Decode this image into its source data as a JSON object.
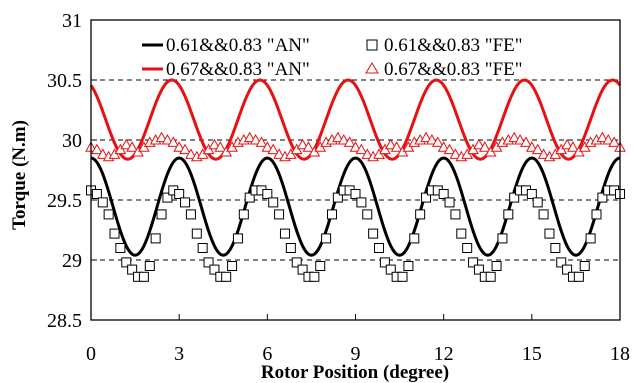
{
  "chart_data": {
    "type": "line",
    "title": "",
    "xlabel": "Rotor Position (degree)",
    "ylabel": "Torque (N.m)",
    "xlim": [
      0,
      18
    ],
    "ylim": [
      28.5,
      31
    ],
    "xticks": [
      "0",
      "3",
      "6",
      "9",
      "12",
      "15",
      "18"
    ],
    "yticks": [
      "28.5",
      "29",
      "29.5",
      "30",
      "30.5",
      "31"
    ],
    "grid": "horizontal dashed at 29, 29.5, 30, 30.5",
    "legend_position": "top",
    "series": [
      {
        "name": "0.61&&0.83 \"AN\"",
        "style": "line",
        "color": "#000000",
        "mean": 29.445,
        "amplitude": 0.405,
        "period_deg": 3,
        "peak_at_deg": 0,
        "values_every_0.5deg": [
          29.85,
          29.75,
          29.45,
          29.04,
          29.14,
          29.45,
          29.85,
          29.75,
          29.45,
          29.04,
          29.14,
          29.45,
          29.85,
          29.75,
          29.45,
          29.04,
          29.14,
          29.45,
          29.85,
          29.75,
          29.45,
          29.04,
          29.14,
          29.45,
          29.85,
          29.75,
          29.45,
          29.04,
          29.14,
          29.45,
          29.85,
          29.75,
          29.45,
          29.04,
          29.14,
          29.45,
          29.85
        ]
      },
      {
        "name": "0.61&&0.83 \"FE\"",
        "style": "markers",
        "marker": "square",
        "color": "#000000",
        "x": [
          0,
          0.2,
          0.4,
          0.6,
          0.8,
          1.0,
          1.2,
          1.4,
          1.6,
          1.8,
          2.0,
          2.2,
          2.4,
          2.6,
          2.8,
          3.0,
          3.2,
          3.4,
          3.6,
          3.8,
          4.0,
          4.2,
          4.4,
          4.6,
          4.8,
          5.0,
          5.2,
          5.4,
          5.6,
          5.8,
          6.0,
          6.2,
          6.4,
          6.6,
          6.8,
          7.0,
          7.2,
          7.4,
          7.6,
          7.8,
          8.0,
          8.2,
          8.4,
          8.6,
          8.8,
          9.0,
          9.2,
          9.4,
          9.6,
          9.8,
          10.0,
          10.2,
          10.4,
          10.6,
          10.8,
          11.0,
          11.2,
          11.4,
          11.6,
          11.8,
          12.0,
          12.2,
          12.4,
          12.6,
          12.8,
          13.0,
          13.2,
          13.4,
          13.6,
          13.8,
          14.0,
          14.2,
          14.4,
          14.6,
          14.8,
          15.0,
          15.2,
          15.4,
          15.6,
          15.8,
          16.0,
          16.2,
          16.4,
          16.6,
          16.8,
          17.0,
          17.2,
          17.4,
          17.6,
          17.8,
          18.0
        ],
        "y": [
          29.58,
          29.55,
          29.48,
          29.38,
          29.22,
          29.1,
          28.98,
          28.92,
          28.86,
          28.86,
          28.95,
          29.18,
          29.38,
          29.52,
          29.58,
          29.55,
          29.48,
          29.38,
          29.22,
          29.1,
          28.98,
          28.92,
          28.86,
          28.86,
          28.95,
          29.18,
          29.38,
          29.52,
          29.58,
          29.58,
          29.55,
          29.48,
          29.38,
          29.22,
          29.1,
          28.98,
          28.92,
          28.86,
          28.86,
          28.95,
          29.18,
          29.38,
          29.52,
          29.58,
          29.58,
          29.55,
          29.48,
          29.38,
          29.22,
          29.1,
          28.98,
          28.92,
          28.86,
          28.86,
          28.95,
          29.18,
          29.38,
          29.52,
          29.58,
          29.58,
          29.55,
          29.48,
          29.38,
          29.22,
          29.1,
          28.98,
          28.92,
          28.86,
          28.86,
          28.95,
          29.18,
          29.38,
          29.52,
          29.58,
          29.58,
          29.55,
          29.48,
          29.38,
          29.22,
          29.1,
          28.98,
          28.92,
          28.86,
          28.86,
          28.95,
          29.18,
          29.38,
          29.52,
          29.58,
          29.58,
          29.55
        ]
      },
      {
        "name": "0.67&&0.83 \"AN\"",
        "style": "line",
        "color": "#e81010",
        "mean": 30.17,
        "amplitude": 0.33,
        "period_deg": 3,
        "peak_at_deg": 2.75,
        "values_every_0.5deg": [
          30.42,
          30.07,
          29.93,
          29.85,
          30.14,
          30.45,
          30.42,
          30.07,
          29.93,
          29.85,
          30.14,
          30.45,
          30.42,
          30.07,
          29.93,
          29.85,
          30.14,
          30.45,
          30.42,
          30.07,
          29.93,
          29.85,
          30.14,
          30.45,
          30.42,
          30.07,
          29.93,
          29.85,
          30.14,
          30.45,
          30.42,
          30.07,
          29.93,
          29.85,
          30.14,
          30.45,
          30.42
        ]
      },
      {
        "name": "0.67&&0.83 \"FE\"",
        "style": "markers",
        "marker": "triangle",
        "color": "#e81010",
        "x": [
          0,
          0.2,
          0.4,
          0.6,
          0.8,
          1.0,
          1.2,
          1.4,
          1.6,
          1.8,
          2.0,
          2.2,
          2.4,
          2.6,
          2.8,
          3.0,
          3.2,
          3.4,
          3.6,
          3.8,
          4.0,
          4.2,
          4.4,
          4.6,
          4.8,
          5.0,
          5.2,
          5.4,
          5.6,
          5.8,
          6.0,
          6.2,
          6.4,
          6.6,
          6.8,
          7.0,
          7.2,
          7.4,
          7.6,
          7.8,
          8.0,
          8.2,
          8.4,
          8.6,
          8.8,
          9.0,
          9.2,
          9.4,
          9.6,
          9.8,
          10.0,
          10.2,
          10.4,
          10.6,
          10.8,
          11.0,
          11.2,
          11.4,
          11.6,
          11.8,
          12.0,
          12.2,
          12.4,
          12.6,
          12.8,
          13.0,
          13.2,
          13.4,
          13.6,
          13.8,
          14.0,
          14.2,
          14.4,
          14.6,
          14.8,
          15.0,
          15.2,
          15.4,
          15.6,
          15.8,
          16.0,
          16.2,
          16.4,
          16.6,
          16.8,
          17.0,
          17.2,
          17.4,
          17.6,
          17.8,
          18.0
        ],
        "y": [
          29.94,
          29.92,
          29.88,
          29.86,
          29.88,
          29.92,
          29.96,
          29.94,
          29.9,
          29.94,
          29.98,
          30.0,
          30.02,
          30.0,
          29.98,
          29.94,
          29.92,
          29.88,
          29.86,
          29.88,
          29.92,
          29.96,
          29.94,
          29.9,
          29.94,
          29.98,
          30.0,
          30.02,
          30.0,
          29.98,
          29.94,
          29.92,
          29.88,
          29.86,
          29.88,
          29.92,
          29.96,
          29.94,
          29.9,
          29.94,
          29.98,
          30.0,
          30.02,
          30.0,
          29.98,
          29.94,
          29.92,
          29.88,
          29.86,
          29.88,
          29.92,
          29.96,
          29.94,
          29.9,
          29.94,
          29.98,
          30.0,
          30.02,
          30.0,
          29.98,
          29.94,
          29.92,
          29.88,
          29.86,
          29.88,
          29.92,
          29.96,
          29.94,
          29.9,
          29.94,
          29.98,
          30.0,
          30.02,
          30.0,
          29.98,
          29.94,
          29.92,
          29.88,
          29.86,
          29.88,
          29.92,
          29.96,
          29.94,
          29.9,
          29.94,
          29.98,
          30.0,
          30.02,
          30.0,
          29.98,
          29.94
        ]
      }
    ]
  }
}
